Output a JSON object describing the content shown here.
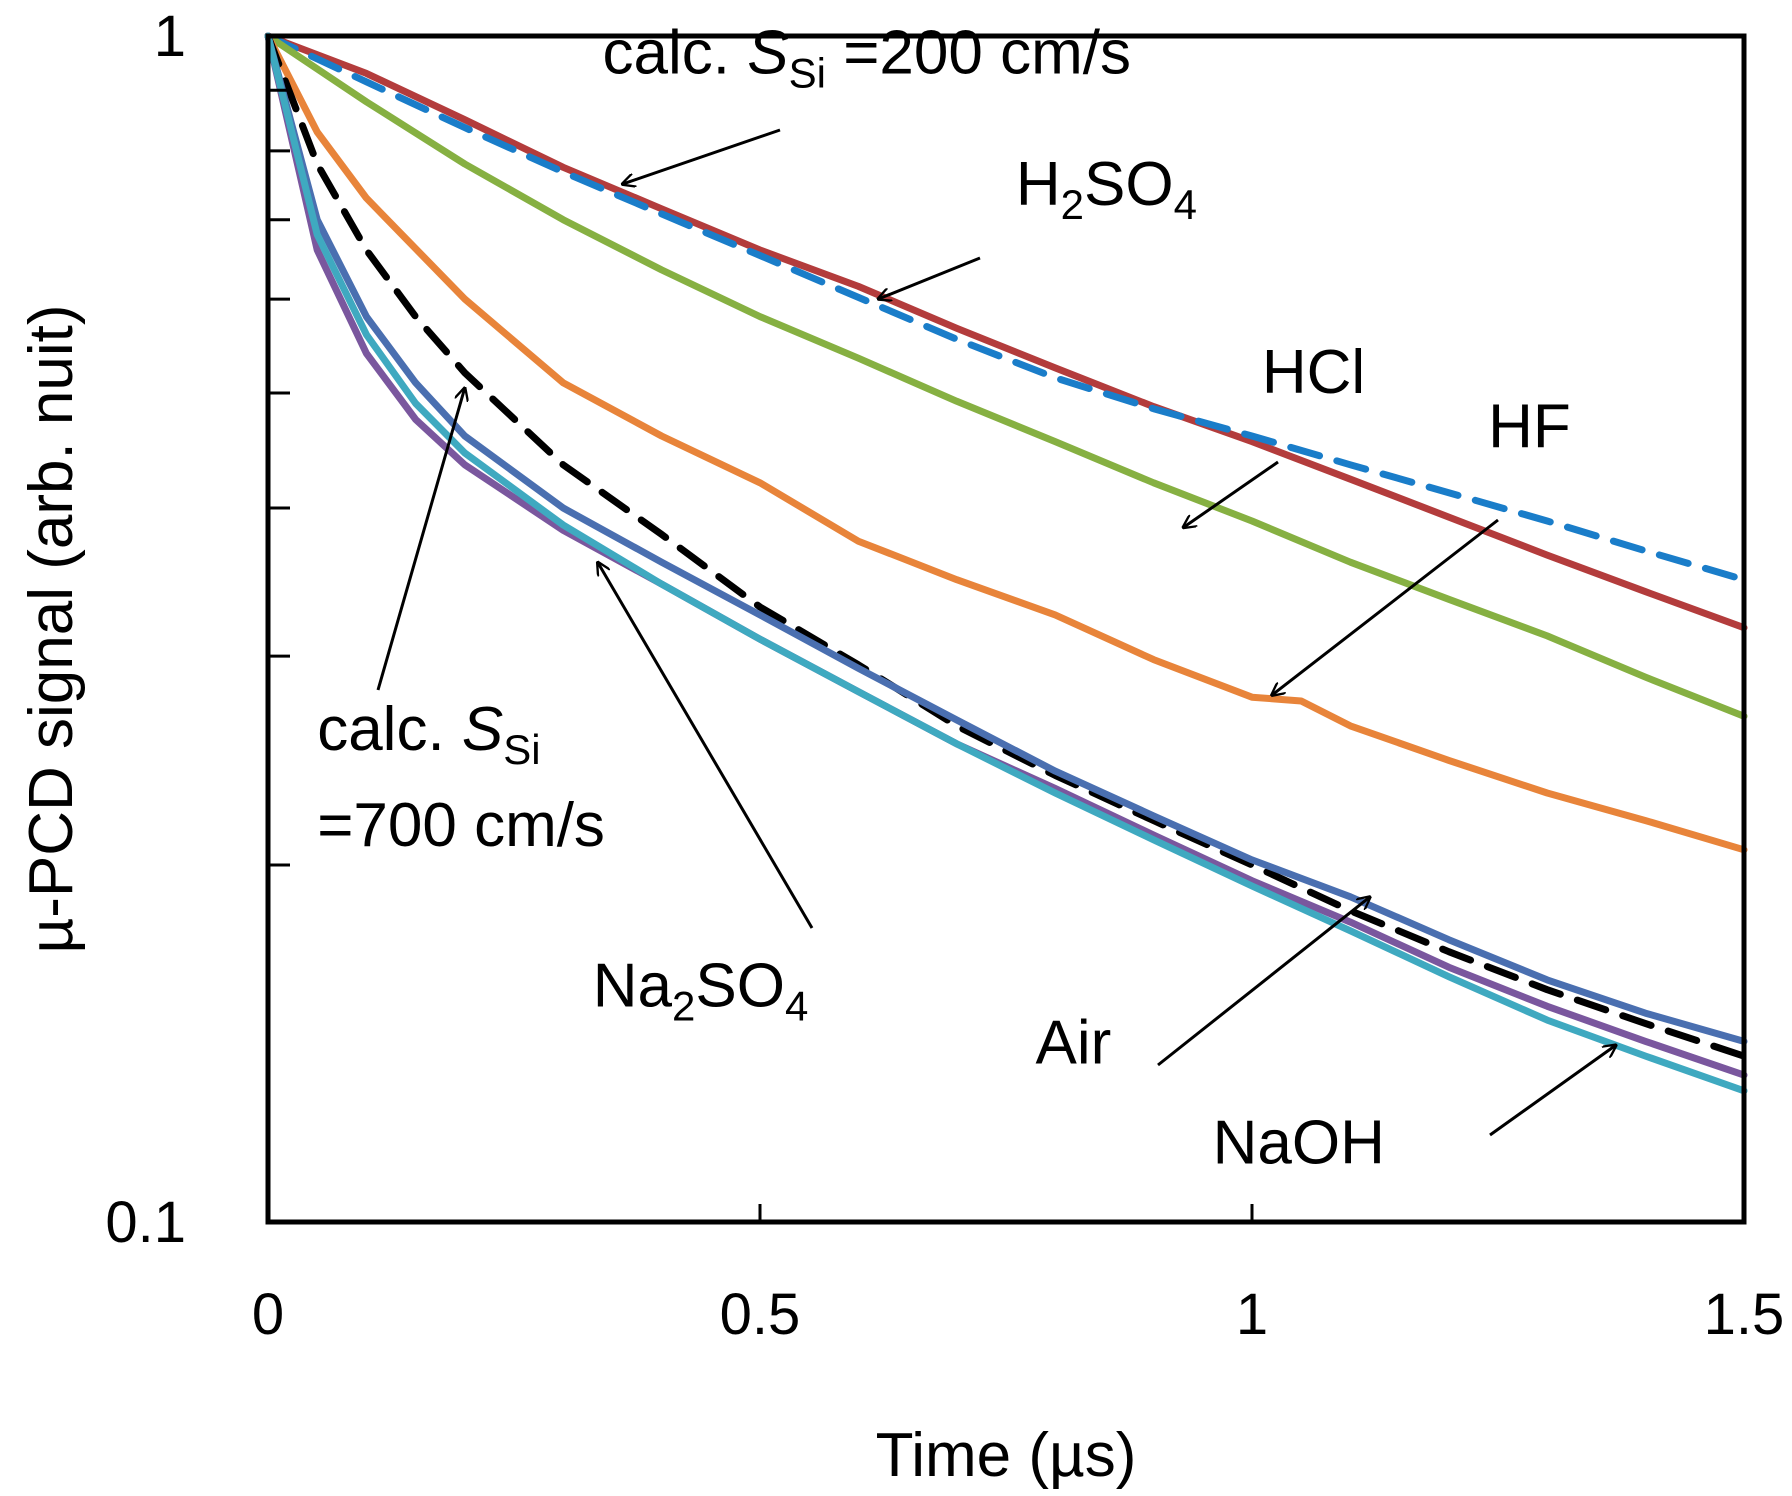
{
  "chart_data": {
    "type": "line",
    "title": "",
    "xlabel": "Time (µs)",
    "ylabel": "µ-PCD signal (arb. nuit)",
    "xlim": [
      0,
      1.5
    ],
    "ylim": [
      0.1,
      1
    ],
    "yscale": "log",
    "grid": false,
    "x_ticks": [
      0,
      0.5,
      1,
      1.5
    ],
    "x_tick_labels": [
      "0",
      "0.5",
      "1",
      "1.5"
    ],
    "y_ticks": [
      0.1,
      1
    ],
    "y_tick_labels": [
      "0.1",
      "1"
    ],
    "y_minor_ticks": [
      0.2,
      0.3,
      0.4,
      0.5,
      0.6,
      0.7,
      0.8,
      0.9
    ],
    "series": [
      {
        "name": "H2SO4",
        "color": "#b33c3c",
        "dash": false,
        "x": [
          0,
          0.1,
          0.2,
          0.3,
          0.4,
          0.5,
          0.6,
          0.7,
          0.8,
          0.9,
          1.0,
          1.1,
          1.2,
          1.3,
          1.4,
          1.5
        ],
        "y": [
          1.0,
          0.93,
          0.85,
          0.775,
          0.715,
          0.66,
          0.615,
          0.567,
          0.525,
          0.487,
          0.455,
          0.423,
          0.393,
          0.365,
          0.34,
          0.317
        ]
      },
      {
        "name": "calc. S_Si = 200 cm/s",
        "color": "#1a7dc9",
        "dash": true,
        "x": [
          0,
          0.1,
          0.2,
          0.3,
          0.4,
          0.5,
          0.6,
          0.7,
          0.8,
          0.9,
          1.0,
          1.1,
          1.2,
          1.3,
          1.4,
          1.5
        ],
        "y": [
          1.0,
          0.915,
          0.837,
          0.768,
          0.708,
          0.653,
          0.602,
          0.555,
          0.515,
          0.485,
          0.46,
          0.435,
          0.412,
          0.39,
          0.368,
          0.348
        ]
      },
      {
        "name": "HCl",
        "color": "#86b042",
        "dash": false,
        "x": [
          0,
          0.1,
          0.2,
          0.3,
          0.4,
          0.5,
          0.6,
          0.7,
          0.8,
          0.9,
          1.0,
          1.1,
          1.2,
          1.3,
          1.4,
          1.5
        ],
        "y": [
          1.0,
          0.88,
          0.78,
          0.7,
          0.635,
          0.58,
          0.535,
          0.492,
          0.455,
          0.42,
          0.39,
          0.36,
          0.335,
          0.312,
          0.288,
          0.267
        ]
      },
      {
        "name": "HF",
        "color": "#e8843a",
        "dash": false,
        "x": [
          0,
          0.05,
          0.1,
          0.2,
          0.3,
          0.4,
          0.5,
          0.6,
          0.7,
          0.8,
          0.9,
          1.0,
          1.05,
          1.1,
          1.2,
          1.3,
          1.4,
          1.5
        ],
        "y": [
          1.0,
          0.83,
          0.73,
          0.6,
          0.51,
          0.46,
          0.42,
          0.375,
          0.348,
          0.325,
          0.298,
          0.277,
          0.275,
          0.262,
          0.245,
          0.23,
          0.218,
          0.206
        ]
      },
      {
        "name": "calc. S_Si = 700 cm/s",
        "color": "#000000",
        "dash": true,
        "x": [
          0,
          0.05,
          0.1,
          0.15,
          0.2,
          0.3,
          0.4,
          0.5,
          0.6,
          0.7,
          0.8,
          0.9,
          1.0,
          1.1,
          1.2,
          1.3,
          1.4,
          1.5
        ],
        "y": [
          1.0,
          0.78,
          0.66,
          0.58,
          0.52,
          0.435,
          0.38,
          0.33,
          0.295,
          0.262,
          0.238,
          0.218,
          0.2,
          0.183,
          0.169,
          0.157,
          0.147,
          0.138
        ]
      },
      {
        "name": "Air",
        "color": "#4a6fb0",
        "dash": false,
        "x": [
          0,
          0.05,
          0.1,
          0.15,
          0.2,
          0.3,
          0.4,
          0.5,
          0.6,
          0.7,
          0.8,
          0.9,
          1.0,
          1.1,
          1.2,
          1.3,
          1.4,
          1.5
        ],
        "y": [
          1.0,
          0.7,
          0.58,
          0.51,
          0.46,
          0.4,
          0.36,
          0.325,
          0.293,
          0.265,
          0.24,
          0.22,
          0.202,
          0.188,
          0.173,
          0.16,
          0.15,
          0.142
        ]
      },
      {
        "name": "Na2SO4",
        "color": "#7a579e",
        "dash": false,
        "x": [
          0,
          0.05,
          0.1,
          0.15,
          0.2,
          0.3,
          0.4,
          0.5,
          0.6,
          0.7,
          0.8,
          0.9,
          1.0,
          1.1,
          1.2,
          1.3,
          1.4,
          1.5
        ],
        "y": [
          1.0,
          0.66,
          0.54,
          0.475,
          0.435,
          0.383,
          0.345,
          0.31,
          0.28,
          0.253,
          0.232,
          0.212,
          0.194,
          0.179,
          0.164,
          0.152,
          0.142,
          0.133
        ]
      },
      {
        "name": "NaOH",
        "color": "#3fa9c0",
        "dash": false,
        "x": [
          0,
          0.05,
          0.1,
          0.15,
          0.2,
          0.3,
          0.4,
          0.5,
          0.6,
          0.7,
          0.8,
          0.9,
          1.0,
          1.1,
          1.2,
          1.3,
          1.4,
          1.5
        ],
        "y": [
          1.0,
          0.68,
          0.56,
          0.49,
          0.445,
          0.387,
          0.345,
          0.31,
          0.28,
          0.253,
          0.23,
          0.21,
          0.192,
          0.176,
          0.161,
          0.148,
          0.138,
          0.129
        ]
      }
    ],
    "annotations": [
      {
        "id": "calc200",
        "text": "calc. S",
        "sub": "Si",
        "tail": " =200 cm/s",
        "text_x": 0.34,
        "text_y": 0.93,
        "arrow_to": [
          0.36,
          0.75
        ]
      },
      {
        "id": "h2so4",
        "text": "H",
        "sub": "2",
        "tail": "SO",
        "sub2": "4",
        "text_x": 0.76,
        "text_y": 0.72,
        "arrow_to": [
          0.62,
          0.6
        ]
      },
      {
        "id": "hcl",
        "text": "HCl",
        "text_x": 1.01,
        "text_y": 0.5,
        "arrow_to": [
          0.93,
          0.385
        ]
      },
      {
        "id": "hf",
        "text": "HF",
        "text_x": 1.24,
        "text_y": 0.45,
        "arrow_to": [
          1.02,
          0.278
        ]
      },
      {
        "id": "calc700",
        "text": "calc. S",
        "sub": "Si",
        "line2": "=700 cm/s",
        "text_x": 0.05,
        "text_y": 0.25,
        "arrow_to": [
          0.2,
          0.505
        ]
      },
      {
        "id": "na2so4",
        "text": "Na",
        "sub": "2",
        "tail": "SO",
        "sub2": "4",
        "text_x": 0.33,
        "text_y": 0.152,
        "arrow_to": [
          0.335,
          0.36
        ]
      },
      {
        "id": "air",
        "text": "Air",
        "text_x": 0.78,
        "text_y": 0.136,
        "arrow_to": [
          1.12,
          0.188
        ]
      },
      {
        "id": "naoh",
        "text": "NaOH",
        "text_x": 0.96,
        "text_y": 0.112,
        "arrow_to": [
          1.37,
          0.141
        ]
      }
    ]
  }
}
